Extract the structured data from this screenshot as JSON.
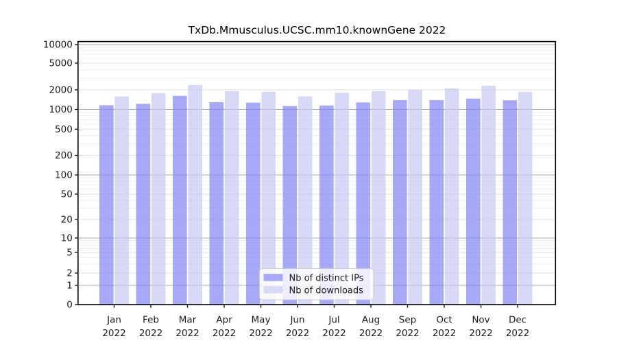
{
  "title": "TxDb.Mmusculus.UCSC.mm10.knownGene 2022",
  "chart_data": {
    "type": "bar",
    "title": "TxDb.Mmusculus.UCSC.mm10.knownGene 2022",
    "xlabel": "",
    "ylabel": "",
    "categories": [
      "Jan",
      "Feb",
      "Mar",
      "Apr",
      "May",
      "Jun",
      "Jul",
      "Aug",
      "Sep",
      "Oct",
      "Nov",
      "Dec"
    ],
    "year_label": "2022",
    "series": [
      {
        "name": "Nb of distinct IPs",
        "values": [
          1160,
          1220,
          1620,
          1290,
          1270,
          1130,
          1150,
          1280,
          1390,
          1390,
          1470,
          1380
        ],
        "color": "#8383f5",
        "legend_color": "#a8a8f8"
      },
      {
        "name": "Nb of downloads",
        "values": [
          1580,
          1780,
          2370,
          1910,
          1870,
          1590,
          1810,
          1910,
          2020,
          2100,
          2300,
          1860
        ],
        "color": "#c7c7f4",
        "legend_color": "#d8d8f7"
      }
    ],
    "bar_opacity": 0.7,
    "y_axis": {
      "scale": "log-like",
      "tick_labels": [
        "10000",
        "5000",
        "2000",
        "1000",
        "500",
        "200",
        "100",
        "50",
        "20",
        "10",
        "5",
        "2",
        "1",
        "0"
      ],
      "anchors": [
        [
          0,
          444
        ],
        [
          1,
          416
        ],
        [
          2,
          398
        ],
        [
          5,
          368
        ],
        [
          10,
          347
        ],
        [
          20,
          320
        ],
        [
          50,
          283
        ],
        [
          100,
          255
        ],
        [
          200,
          226.5
        ],
        [
          500,
          188.3
        ],
        [
          1000,
          159.5
        ],
        [
          2000,
          131
        ],
        [
          5000,
          92
        ],
        [
          10000,
          65
        ]
      ],
      "minor_values": [
        3,
        4,
        6,
        7,
        8,
        9,
        30,
        40,
        60,
        70,
        80,
        90,
        300,
        400,
        600,
        700,
        800,
        900,
        3000,
        4000,
        6000,
        7000,
        8000,
        9000
      ],
      "emphasized_gridlines": [
        1,
        10,
        100,
        1000,
        10000
      ]
    },
    "legend": {
      "position": "bottom-center-inside",
      "entries": [
        "Nb of distinct IPs",
        "Nb of downloads"
      ]
    },
    "grid": true,
    "colors": {
      "grid_minor": "#efefef",
      "grid_major": "#e2e2e2",
      "grid_emphasis": "#a9a9a9",
      "axis": "#000000",
      "text": "#1a1a1a",
      "legend_border": "#cccccc",
      "legend_bg": "rgba(255,255,255,0.8)",
      "background": "#ffffff"
    }
  }
}
